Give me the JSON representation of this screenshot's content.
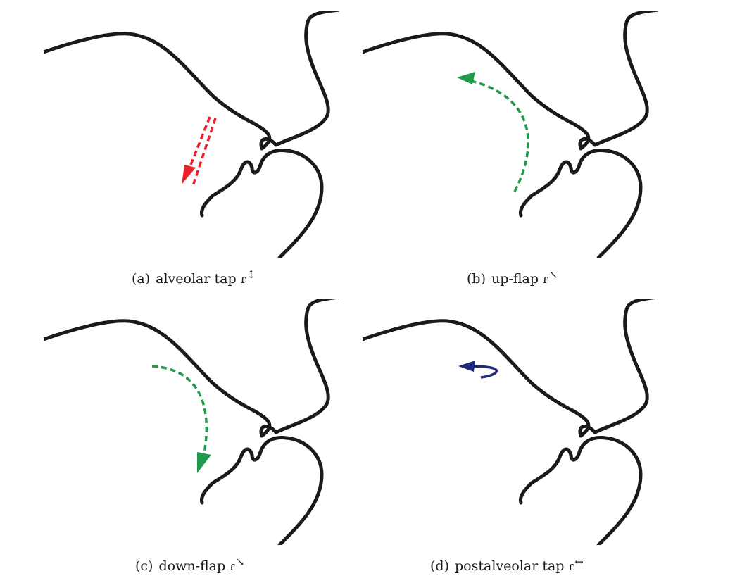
{
  "figure": {
    "panels": [
      {
        "tag": "(a)",
        "label": "alveolar tap",
        "symbol": "ɾ",
        "diacritic": "↕",
        "arrow_color": "#e8202a",
        "arrow_style": "dashed"
      },
      {
        "tag": "(b)",
        "label": "up-flap",
        "symbol": "ɾ",
        "diacritic": "↖",
        "arrow_color": "#1e9b4a",
        "arrow_style": "dashed"
      },
      {
        "tag": "(c)",
        "label": "down-flap",
        "symbol": "ɾ",
        "diacritic": "↘",
        "arrow_color": "#1e9b4a",
        "arrow_style": "dashed"
      },
      {
        "tag": "(d)",
        "label": "postalveolar tap",
        "symbol": "ɾ",
        "diacritic": "↔",
        "arrow_color": "#1f2a7a",
        "arrow_style": "solid"
      }
    ]
  }
}
